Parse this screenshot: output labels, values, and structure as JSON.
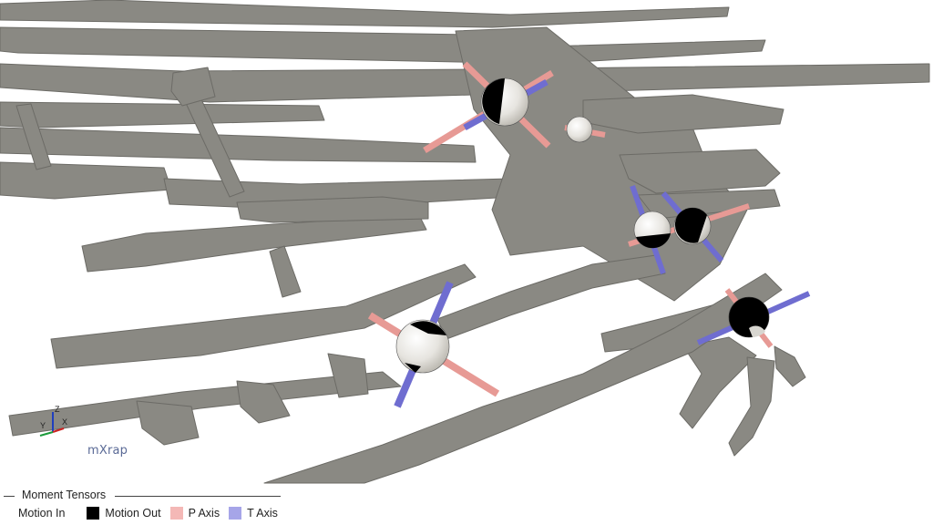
{
  "watermark": "mXrap",
  "axes_widget": {
    "z": "Z",
    "y": "Y",
    "x": "X"
  },
  "legend": {
    "title": "Moment Tensors",
    "items": [
      {
        "label": "Motion In",
        "color": "#ffffff"
      },
      {
        "label": "Motion Out",
        "color": "#000000"
      },
      {
        "label": "P Axis",
        "color": "#f4b8b6"
      },
      {
        "label": "T Axis",
        "color": "#a6a5e8"
      }
    ]
  },
  "colors": {
    "rock": "#8a8983",
    "rock_edge": "#6c6b66",
    "p_axis": "#e79a95",
    "t_axis": "#6f6dd0"
  }
}
